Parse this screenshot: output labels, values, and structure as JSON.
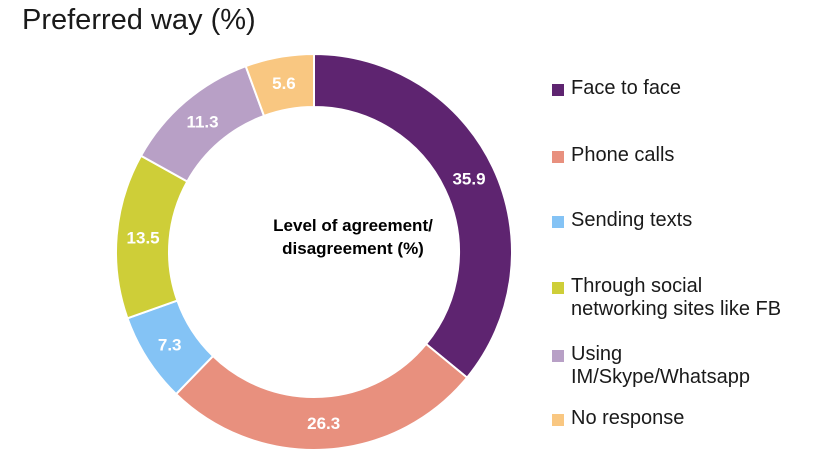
{
  "chart_data": {
    "type": "donut",
    "title": "Preferred way (%)",
    "center_label_lines": [
      "Level of agreement/",
      "disagreement (%)"
    ],
    "legend_position": "right",
    "slices": [
      {
        "label": "Face to face",
        "value": 35.9,
        "color": "#5e2470",
        "value_label": "35.9"
      },
      {
        "label": "Phone calls",
        "value": 26.3,
        "color": "#e8907e",
        "value_label": "26.3"
      },
      {
        "label": "Sending texts",
        "value": 7.3,
        "color": "#84c3f5",
        "value_label": "7.3"
      },
      {
        "label": "Through social\nnetworking sites like FB",
        "value": 13.5,
        "color": "#cece38",
        "value_label": "13.5"
      },
      {
        "label": "Using\nIM/Skype/Whatsapp",
        "value": 11.3,
        "color": "#b8a0c6",
        "value_label": "11.3"
      },
      {
        "label": "No response",
        "value": 5.6,
        "color": "#f9c781",
        "value_label": "5.6"
      }
    ]
  }
}
